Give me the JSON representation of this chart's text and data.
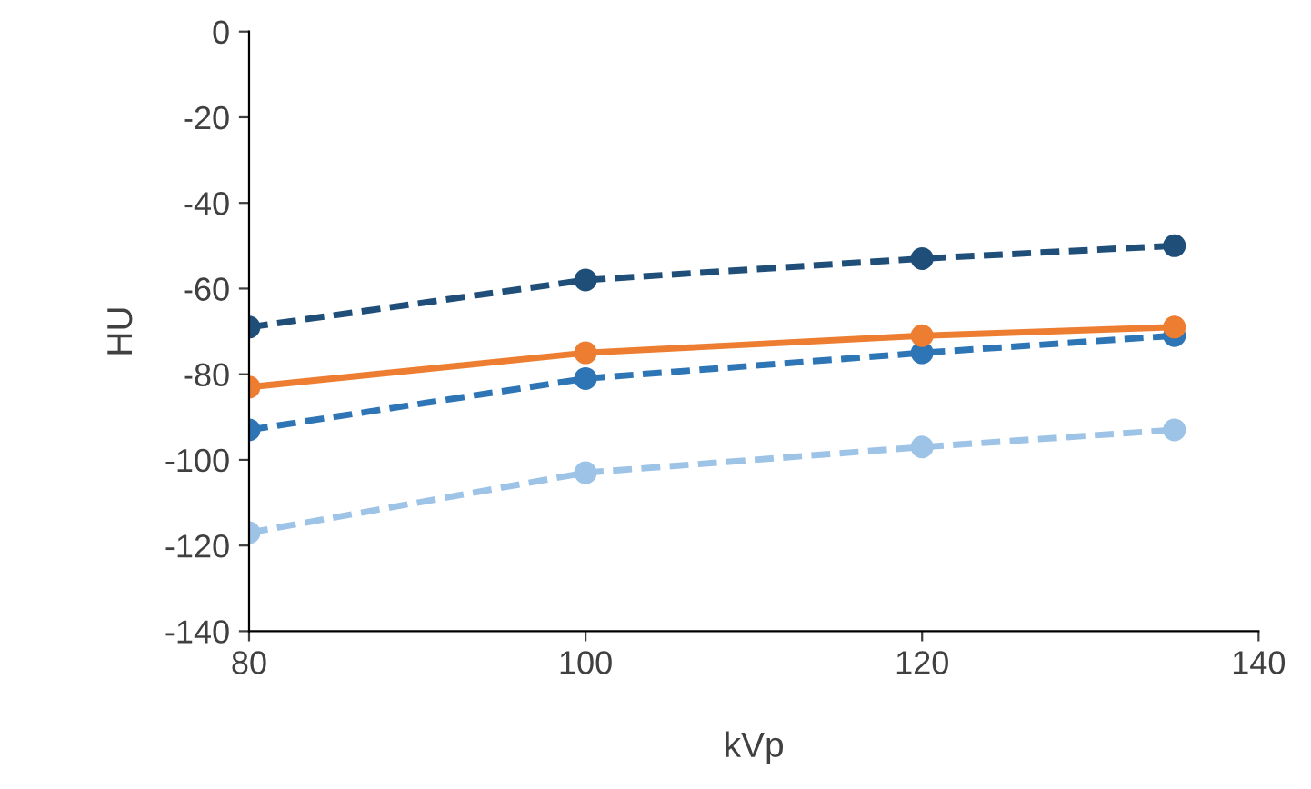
{
  "chart_data": {
    "type": "line",
    "xlabel": "kVp",
    "ylabel": "HU",
    "x": [
      80,
      100,
      120,
      135
    ],
    "series": [
      {
        "color": "#1f4e79",
        "values": [
          -69,
          -58,
          -53,
          -50
        ],
        "line_style": "dashed"
      },
      {
        "color": "#ed7d31",
        "values": [
          -83,
          -75,
          -71,
          -69
        ],
        "line_style": "solid"
      },
      {
        "color": "#2e75b6",
        "values": [
          -93,
          -81,
          -75,
          -71
        ],
        "line_style": "dashed"
      },
      {
        "color": "#9dc3e6",
        "values": [
          -117,
          -103,
          -97,
          -93
        ],
        "line_style": "dashed"
      }
    ],
    "xlim": [
      80,
      140
    ],
    "xticks": [
      80,
      100,
      120,
      140
    ],
    "ylim": [
      -140,
      0
    ],
    "yticks": [
      -140,
      -120,
      -100,
      -80,
      -60,
      -40,
      -20,
      0
    ],
    "marker": "circle",
    "grid": false,
    "legend": false
  }
}
